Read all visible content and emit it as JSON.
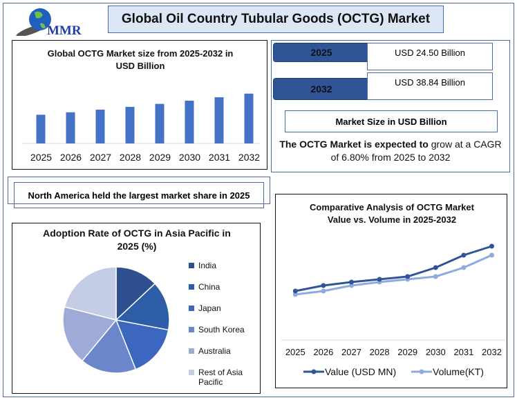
{
  "logo": {
    "text": "MMR"
  },
  "header": {
    "title": "Global Oil Country Tubular Goods (OCTG) Market"
  },
  "colors": {
    "bar": "#4472c4",
    "value_line": "#2f5597",
    "volume_line": "#8faadc",
    "border": "#4a6aa8"
  },
  "stats": {
    "items": [
      {
        "year": "2025",
        "value": "USD 24.50 Billion"
      },
      {
        "year": "2032",
        "value": "USD 38.84 Billion"
      }
    ],
    "market_size_label": "Market Size in USD Billion",
    "cagr_bold": "The OCTG Market is expected to",
    "cagr_rest": " grow at a CAGR of 6.80% from 2025 to 2032"
  },
  "region_note": "North America held the largest market share in 2025",
  "chart_data": [
    {
      "type": "bar",
      "title": "Global OCTG Market size from 2025-2032 in USD Billion",
      "categories": [
        "2025",
        "2026",
        "2027",
        "2028",
        "2029",
        "2030",
        "2031",
        "2032"
      ],
      "values": [
        24.5,
        26.17,
        27.95,
        29.85,
        31.87,
        34.04,
        36.36,
        38.84
      ],
      "xlabel": "",
      "ylabel": "",
      "ylim": [
        5,
        42
      ],
      "grid": false
    },
    {
      "type": "pie",
      "title": "Adoption Rate of OCTG in Asia Pacific in 2025 (%)",
      "labels": [
        "India",
        "China",
        "Japan",
        "South Korea",
        "Australia",
        "Rest of Asia Pacific"
      ],
      "values": [
        13,
        15,
        16,
        17,
        18,
        21
      ],
      "colors": [
        "#2f4f8f",
        "#2e5da8",
        "#3b67bf",
        "#6c86cc",
        "#9eabd6",
        "#c4cce6"
      ],
      "legend": "right"
    },
    {
      "type": "line",
      "title": "Comparative Analysis of OCTG Market Value vs. Volume in 2025-2032",
      "x": [
        "2025",
        "2026",
        "2027",
        "2028",
        "2029",
        "2030",
        "2031",
        "2032"
      ],
      "series": [
        {
          "name": "Value (USD MN)",
          "values": [
            71,
            79,
            84,
            88,
            92,
            105,
            123,
            136
          ]
        },
        {
          "name": "Volume(KT)",
          "values": [
            66,
            71,
            79,
            84,
            88,
            92,
            105,
            123
          ]
        }
      ],
      "ylim": [
        0,
        150
      ],
      "legend": "bottom",
      "grid": false
    }
  ]
}
